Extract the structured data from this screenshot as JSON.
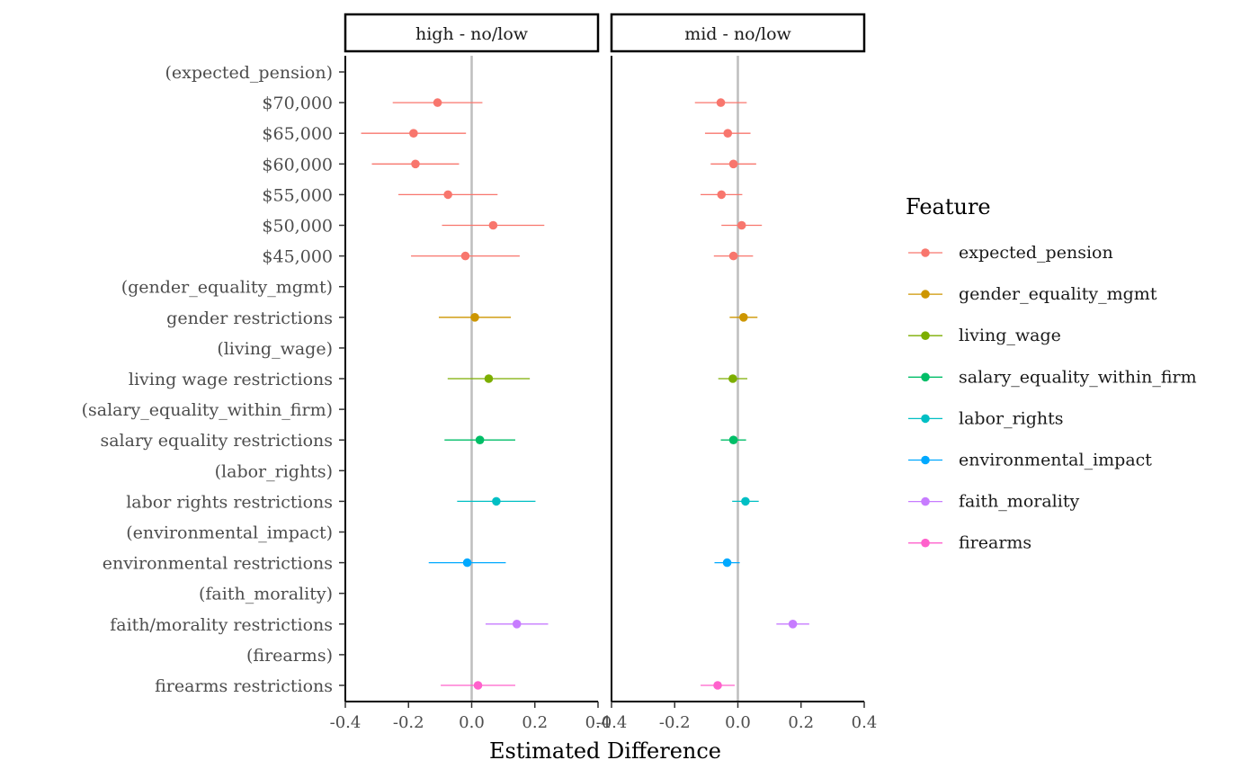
{
  "chart_data": {
    "type": "scatter",
    "subtype": "coefficient-plot-faceted",
    "xlabel": "Estimated Difference",
    "xlim": [
      -0.4,
      0.4
    ],
    "xticks": [
      -0.4,
      -0.2,
      0.0,
      0.2,
      0.4
    ],
    "xtick_labels": [
      "-0.4",
      "-0.2",
      "0.0",
      "0.2",
      "0.4"
    ],
    "zero_line": 0,
    "legend_title": "Feature",
    "legend_position": "right",
    "features": [
      {
        "name": "expected_pension",
        "color": "#F8766D"
      },
      {
        "name": "gender_equality_mgmt",
        "color": "#CD9600"
      },
      {
        "name": "living_wage",
        "color": "#7CAE00"
      },
      {
        "name": "salary_equality_within_firm",
        "color": "#00BE67"
      },
      {
        "name": "labor_rights",
        "color": "#00BFC4"
      },
      {
        "name": "environmental_impact",
        "color": "#00A9FF"
      },
      {
        "name": "faith_morality",
        "color": "#C77CFF"
      },
      {
        "name": "firearms",
        "color": "#FF61CC"
      }
    ],
    "rows": [
      {
        "label": "(expected_pension)",
        "feature": "expected_pension"
      },
      {
        "label": "$70,000",
        "feature": "expected_pension"
      },
      {
        "label": "$65,000",
        "feature": "expected_pension"
      },
      {
        "label": "$60,000",
        "feature": "expected_pension"
      },
      {
        "label": "$55,000",
        "feature": "expected_pension"
      },
      {
        "label": "$50,000",
        "feature": "expected_pension"
      },
      {
        "label": "$45,000",
        "feature": "expected_pension"
      },
      {
        "label": "(gender_equality_mgmt)",
        "feature": "gender_equality_mgmt"
      },
      {
        "label": "gender restrictions",
        "feature": "gender_equality_mgmt"
      },
      {
        "label": "(living_wage)",
        "feature": "living_wage"
      },
      {
        "label": "living wage restrictions",
        "feature": "living_wage"
      },
      {
        "label": "(salary_equality_within_firm)",
        "feature": "salary_equality_within_firm"
      },
      {
        "label": "salary equality restrictions",
        "feature": "salary_equality_within_firm"
      },
      {
        "label": "(labor_rights)",
        "feature": "labor_rights"
      },
      {
        "label": "labor rights restrictions",
        "feature": "labor_rights"
      },
      {
        "label": "(environmental_impact)",
        "feature": "environmental_impact"
      },
      {
        "label": "environmental restrictions",
        "feature": "environmental_impact"
      },
      {
        "label": "(faith_morality)",
        "feature": "faith_morality"
      },
      {
        "label": "faith/morality restrictions",
        "feature": "faith_morality"
      },
      {
        "label": "(firearms)",
        "feature": "firearms"
      },
      {
        "label": "firearms restrictions",
        "feature": "firearms"
      }
    ],
    "panels": [
      {
        "title": "high - no/low",
        "estimates": [
          {
            "row": "$70,000",
            "est": -0.108,
            "lo": -0.25,
            "hi": 0.034
          },
          {
            "row": "$65,000",
            "est": -0.184,
            "lo": -0.35,
            "hi": -0.018
          },
          {
            "row": "$60,000",
            "est": -0.178,
            "lo": -0.316,
            "hi": -0.04
          },
          {
            "row": "$55,000",
            "est": -0.075,
            "lo": -0.232,
            "hi": 0.082
          },
          {
            "row": "$50,000",
            "est": 0.068,
            "lo": -0.094,
            "hi": 0.23
          },
          {
            "row": "$45,000",
            "est": -0.02,
            "lo": -0.192,
            "hi": 0.152
          },
          {
            "row": "gender restrictions",
            "est": 0.01,
            "lo": -0.104,
            "hi": 0.124
          },
          {
            "row": "living wage restrictions",
            "est": 0.054,
            "lo": -0.076,
            "hi": 0.184
          },
          {
            "row": "salary equality restrictions",
            "est": 0.026,
            "lo": -0.086,
            "hi": 0.138
          },
          {
            "row": "labor rights restrictions",
            "est": 0.078,
            "lo": -0.046,
            "hi": 0.202
          },
          {
            "row": "environmental restrictions",
            "est": -0.014,
            "lo": -0.136,
            "hi": 0.108
          },
          {
            "row": "faith/morality restrictions",
            "est": 0.143,
            "lo": 0.044,
            "hi": 0.242
          },
          {
            "row": "firearms restrictions",
            "est": 0.02,
            "lo": -0.098,
            "hi": 0.138
          }
        ]
      },
      {
        "title": "mid - no/low",
        "estimates": [
          {
            "row": "$70,000",
            "est": -0.054,
            "lo": -0.136,
            "hi": 0.028
          },
          {
            "row": "$65,000",
            "est": -0.032,
            "lo": -0.104,
            "hi": 0.04
          },
          {
            "row": "$60,000",
            "est": -0.014,
            "lo": -0.086,
            "hi": 0.058
          },
          {
            "row": "$55,000",
            "est": -0.052,
            "lo": -0.118,
            "hi": 0.014
          },
          {
            "row": "$50,000",
            "est": 0.012,
            "lo": -0.052,
            "hi": 0.076
          },
          {
            "row": "$45,000",
            "est": -0.014,
            "lo": -0.076,
            "hi": 0.048
          },
          {
            "row": "gender restrictions",
            "est": 0.018,
            "lo": -0.026,
            "hi": 0.062
          },
          {
            "row": "living wage restrictions",
            "est": -0.016,
            "lo": -0.062,
            "hi": 0.03
          },
          {
            "row": "salary equality restrictions",
            "est": -0.014,
            "lo": -0.054,
            "hi": 0.026
          },
          {
            "row": "labor rights restrictions",
            "est": 0.024,
            "lo": -0.018,
            "hi": 0.066
          },
          {
            "row": "environmental restrictions",
            "est": -0.034,
            "lo": -0.074,
            "hi": 0.006
          },
          {
            "row": "faith/morality restrictions",
            "est": 0.174,
            "lo": 0.122,
            "hi": 0.226
          },
          {
            "row": "firearms restrictions",
            "est": -0.064,
            "lo": -0.118,
            "hi": -0.01
          }
        ]
      }
    ]
  }
}
